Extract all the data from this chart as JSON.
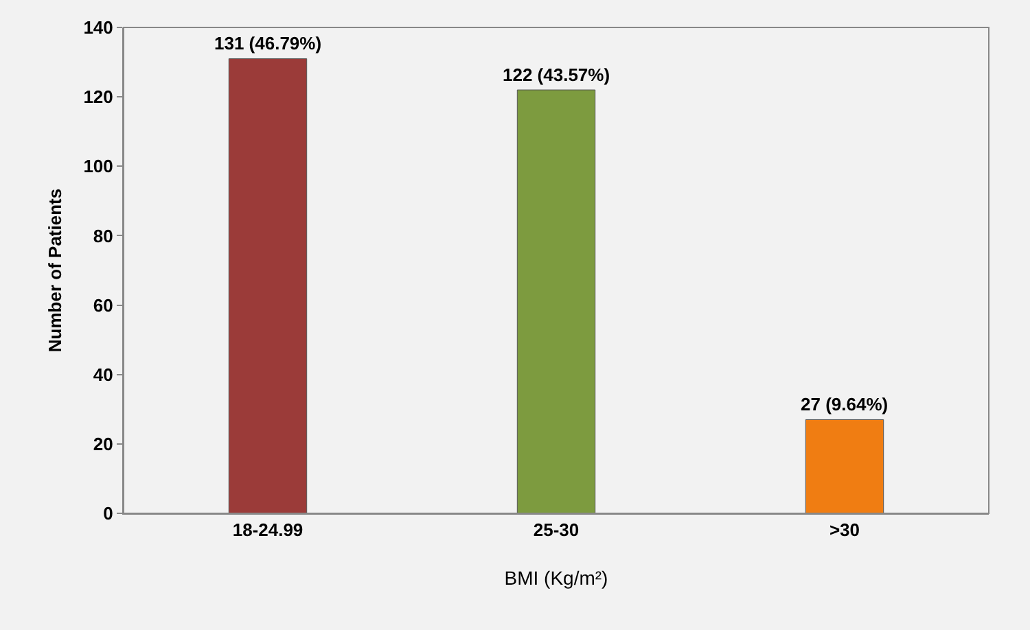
{
  "chart_data": {
    "type": "bar",
    "xlabel": "BMI (Kg/m²)",
    "ylabel": "Number of Patients",
    "categories": [
      "18-24.99",
      "25-30",
      ">30"
    ],
    "values": [
      131,
      122,
      27
    ],
    "colors": [
      "#9b3b39",
      "#7d9b3f",
      "#f07d12"
    ],
    "value_labels": [
      "131 (46.79%)",
      "122 (43.57%)",
      "27 (9.64%)"
    ],
    "ylim": [
      0,
      140
    ],
    "yticks": [
      0,
      20,
      40,
      60,
      80,
      100,
      120,
      140
    ],
    "grid": false
  }
}
